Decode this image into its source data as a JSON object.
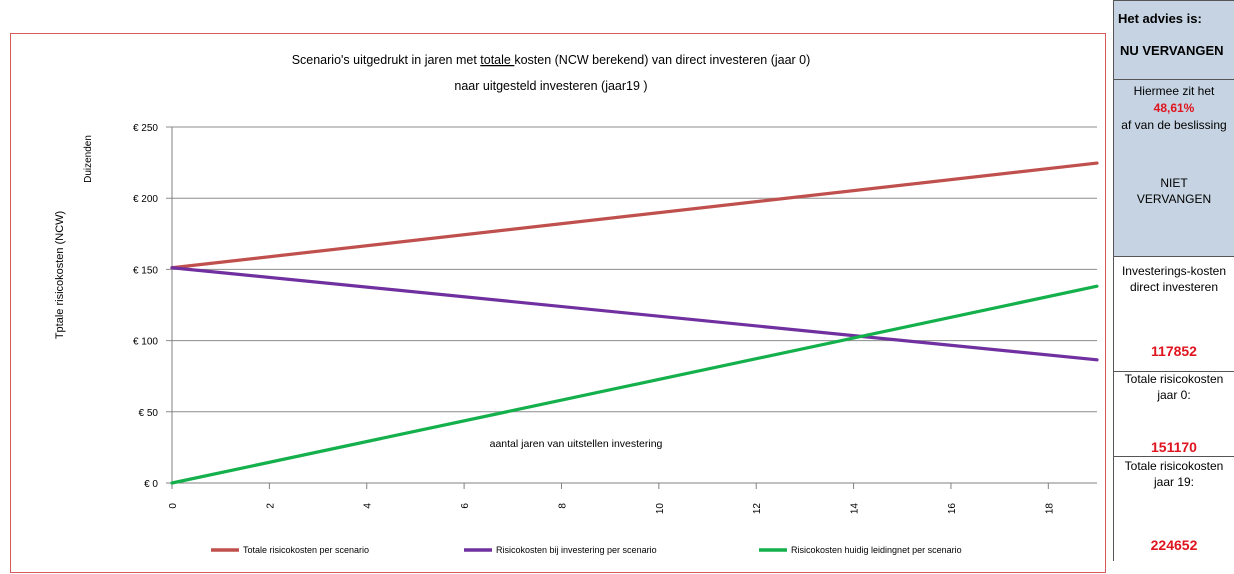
{
  "chart_data": {
    "type": "line",
    "title_line1_pre": "Scenario's  uitgedrukt in jaren met ",
    "title_line1_underlined": "totale ",
    "title_line1_post": "kosten (NCW berekend) van direct investeren (jaar 0)",
    "title_line2": "naar uitgesteld investeren  (jaar19 )",
    "ylabel": "Tptale risicokosten (NCW)",
    "yunit": "Duizenden",
    "xlabel_annotation": "aantal jaren van uitstellen investering",
    "x_ticks": [
      "0",
      "2",
      "4",
      "6",
      "8",
      "10",
      "12",
      "14",
      "16",
      "18"
    ],
    "y_ticks": [
      "€ 0",
      "€ 50",
      "€ 100",
      "€ 150",
      "€ 200",
      "€ 250"
    ],
    "xlim": [
      0,
      19
    ],
    "ylim": [
      0,
      250
    ],
    "grid": true,
    "legend_position": "bottom",
    "series": [
      {
        "name": "Totale risicokosten per scenario",
        "color": "#c0504d",
        "x": [
          0,
          19
        ],
        "y": [
          151.17,
          224.652
        ]
      },
      {
        "name": "Risicokosten bij investering per scenario",
        "color": "#7030a0",
        "x": [
          0,
          19
        ],
        "y": [
          151.17,
          86.5
        ]
      },
      {
        "name": "Risicokosten huidig leidingnet per scenario",
        "color": "#14b04c",
        "x": [
          0,
          19
        ],
        "y": [
          0,
          138.2
        ]
      }
    ]
  },
  "sidebar": {
    "header_line1": "Het advies is:",
    "header_line2": "NU VERVANGEN",
    "advice_line1": "Hiermee zit het",
    "advice_percent": "48,61%",
    "advice_line3": "af van de beslissing",
    "advice_alt_line1": "NIET",
    "advice_alt_line2": "VERVANGEN",
    "box1_line1": "Investerings-kosten",
    "box1_line2": "direct investeren",
    "box1_value": "117852",
    "box2_line1": "Totale risicokosten",
    "box2_line2": "jaar 0:",
    "box2_value": "151170",
    "box3_line1": "Totale risicokosten",
    "box3_line2": "jaar 19:",
    "box3_value": "224652"
  }
}
